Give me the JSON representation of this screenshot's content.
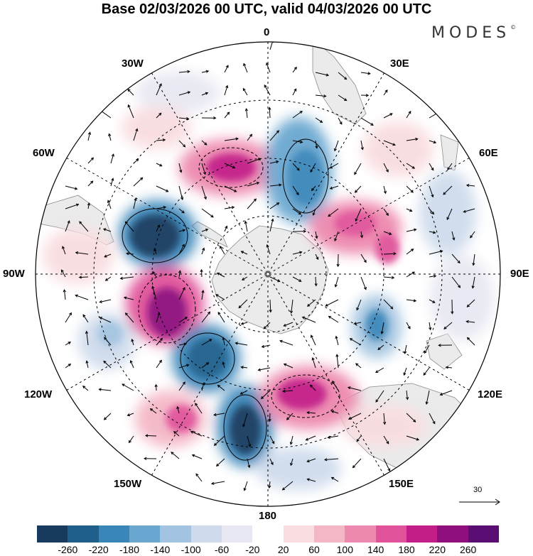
{
  "title": "Base 02/03/2026 00 UTC, valid 04/03/2026 00 UTC",
  "logo": {
    "text": "MODES",
    "mark": "©"
  },
  "longitude_labels": {
    "n0": "0",
    "n30e": "30E",
    "n60e": "60E",
    "n90e": "90E",
    "n120e": "120E",
    "n150e": "150E",
    "n180": "180",
    "n150w": "150W",
    "n120w": "120W",
    "n90w": "90W",
    "n60w": "60W",
    "n30w": "30W"
  },
  "wind_scale": {
    "value": "30",
    "icon": "arrow-right-icon"
  },
  "colorbar": {
    "colors": [
      "#173a5e",
      "#1f5f8b",
      "#3b86b9",
      "#6aa7d0",
      "#a3c4e0",
      "#cfdbec",
      "#e8e8f3",
      "#ffffff",
      "#f9dde0",
      "#f4b7c6",
      "#ed88ae",
      "#e0529a",
      "#c31e87",
      "#8e0f7d",
      "#5a0e73"
    ],
    "ticks": [
      "-260",
      "-220",
      "-180",
      "-140",
      "-100",
      "-60",
      "-20",
      "20",
      "60",
      "100",
      "140",
      "180",
      "220",
      "260"
    ]
  },
  "colors": {
    "land": "#ebebeb",
    "coast": "#8c8c8c",
    "grid": "#000000"
  }
}
